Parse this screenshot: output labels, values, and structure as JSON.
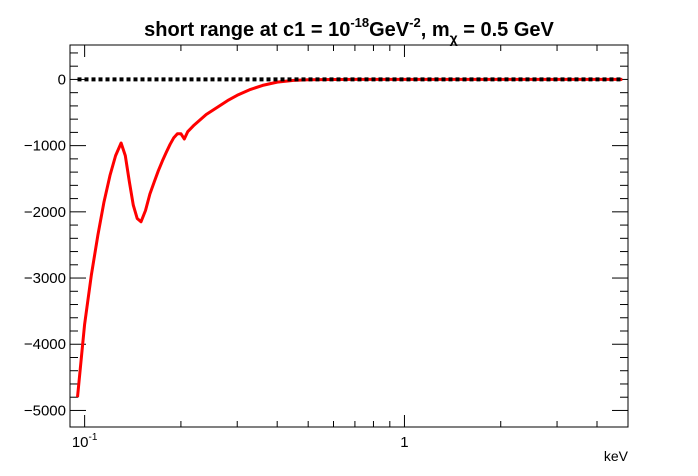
{
  "chart_data": {
    "type": "line",
    "title": {
      "prefix": "short range at c1 = 10",
      "exp1": "-18",
      "mid": "GeV",
      "exp2": "-2",
      "comma": ", m",
      "sub": "χ",
      "suffix": " = 0.5 GeV"
    },
    "xlabel": "keV",
    "ylabel": "",
    "xscale": "log",
    "xlim": [
      0.09,
      5.0
    ],
    "ylim": [
      -5250,
      520
    ],
    "xtick_labels": [
      {
        "value": 0.1,
        "base": "10",
        "exp": "-1"
      },
      {
        "value": 1,
        "base": "1",
        "exp": ""
      }
    ],
    "yticks": [
      0,
      -1000,
      -2000,
      -3000,
      -4000,
      -5000
    ],
    "ytick_labels": [
      "0",
      "−1000",
      "−2000",
      "−3000",
      "−4000",
      "−5000"
    ],
    "series": [
      {
        "color": "#ff0000",
        "style": "solid",
        "x": [
          0.095,
          0.1,
          0.105,
          0.11,
          0.115,
          0.12,
          0.125,
          0.13,
          0.134,
          0.138,
          0.142,
          0.146,
          0.15,
          0.155,
          0.16,
          0.165,
          0.17,
          0.175,
          0.18,
          0.185,
          0.19,
          0.195,
          0.2,
          0.205,
          0.21,
          0.22,
          0.24,
          0.26,
          0.28,
          0.3,
          0.33,
          0.36,
          0.4,
          0.45,
          0.5,
          0.55,
          0.6,
          0.7,
          0.8,
          1.0,
          1.5,
          2.0,
          3.0,
          4.0,
          4.8
        ],
        "y": [
          -4800,
          -3700,
          -2950,
          -2350,
          -1850,
          -1450,
          -1150,
          -960,
          -1150,
          -1550,
          -1900,
          -2100,
          -2150,
          -1980,
          -1730,
          -1550,
          -1380,
          -1230,
          -1100,
          -980,
          -880,
          -820,
          -820,
          -900,
          -790,
          -690,
          -530,
          -420,
          -320,
          -240,
          -150,
          -90,
          -40,
          -15,
          -5,
          -2,
          -1,
          0,
          0,
          0,
          0,
          0,
          0,
          0,
          0
        ]
      },
      {
        "color": "#000000",
        "style": "dotted",
        "x": [
          0.095,
          4.8
        ],
        "y": [
          0,
          0
        ]
      }
    ]
  }
}
